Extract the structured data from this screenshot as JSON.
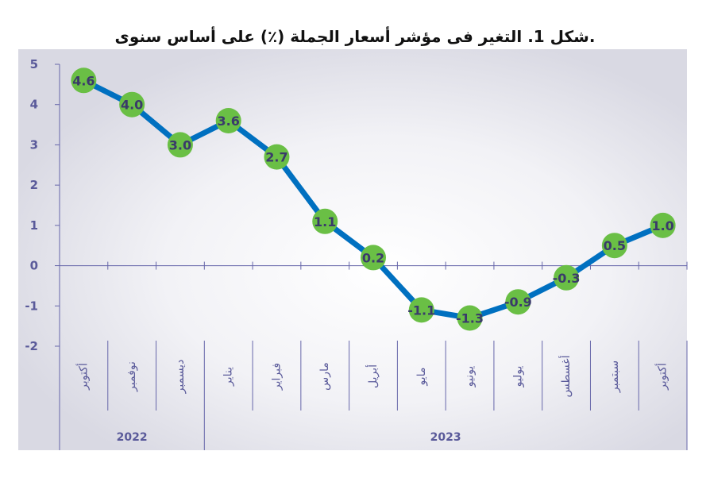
{
  "page": {
    "title": "شكل 1. التغير فى مؤشر أسعار الجملة (٪) على أساس سنوى."
  },
  "colors": {
    "plot_background": "#d9d9e3",
    "plot_glow": "#ffffff",
    "line": "#0070c0",
    "marker": "#6abf45",
    "axis": "#6666aa",
    "text": "#5a5a9a"
  },
  "chart_data": {
    "type": "line",
    "categories": [
      "أكتوبر",
      "نوفمبر",
      "ديسمبر",
      "يناير",
      "فبراير",
      "مارس",
      "أبريل",
      "مايو",
      "يونيو",
      "يوليو",
      "أغسطس",
      "سبتمبر",
      "أكتوبر"
    ],
    "years": [
      {
        "label": "2022",
        "count": 3
      },
      {
        "label": "2023",
        "count": 10
      }
    ],
    "series": [
      {
        "values": [
          4.6,
          4.0,
          3.0,
          3.6,
          2.7,
          1.1,
          0.2,
          -1.1,
          -1.3,
          -0.9,
          -0.3,
          0.5,
          1.0
        ]
      }
    ],
    "data_labels": [
      "4.6",
      "4.0",
      "3.0",
      "3.6",
      "2.7",
      "1.1",
      "0.2",
      "-1.1",
      "-1.3",
      "-0.9",
      "-0.3",
      "0.5",
      "1.0"
    ],
    "ylim": [
      -2,
      5
    ],
    "yticks": [
      "5",
      "4",
      "3",
      "2",
      "1",
      "0",
      "-1",
      "-2"
    ],
    "grid": false,
    "legend": "none"
  }
}
